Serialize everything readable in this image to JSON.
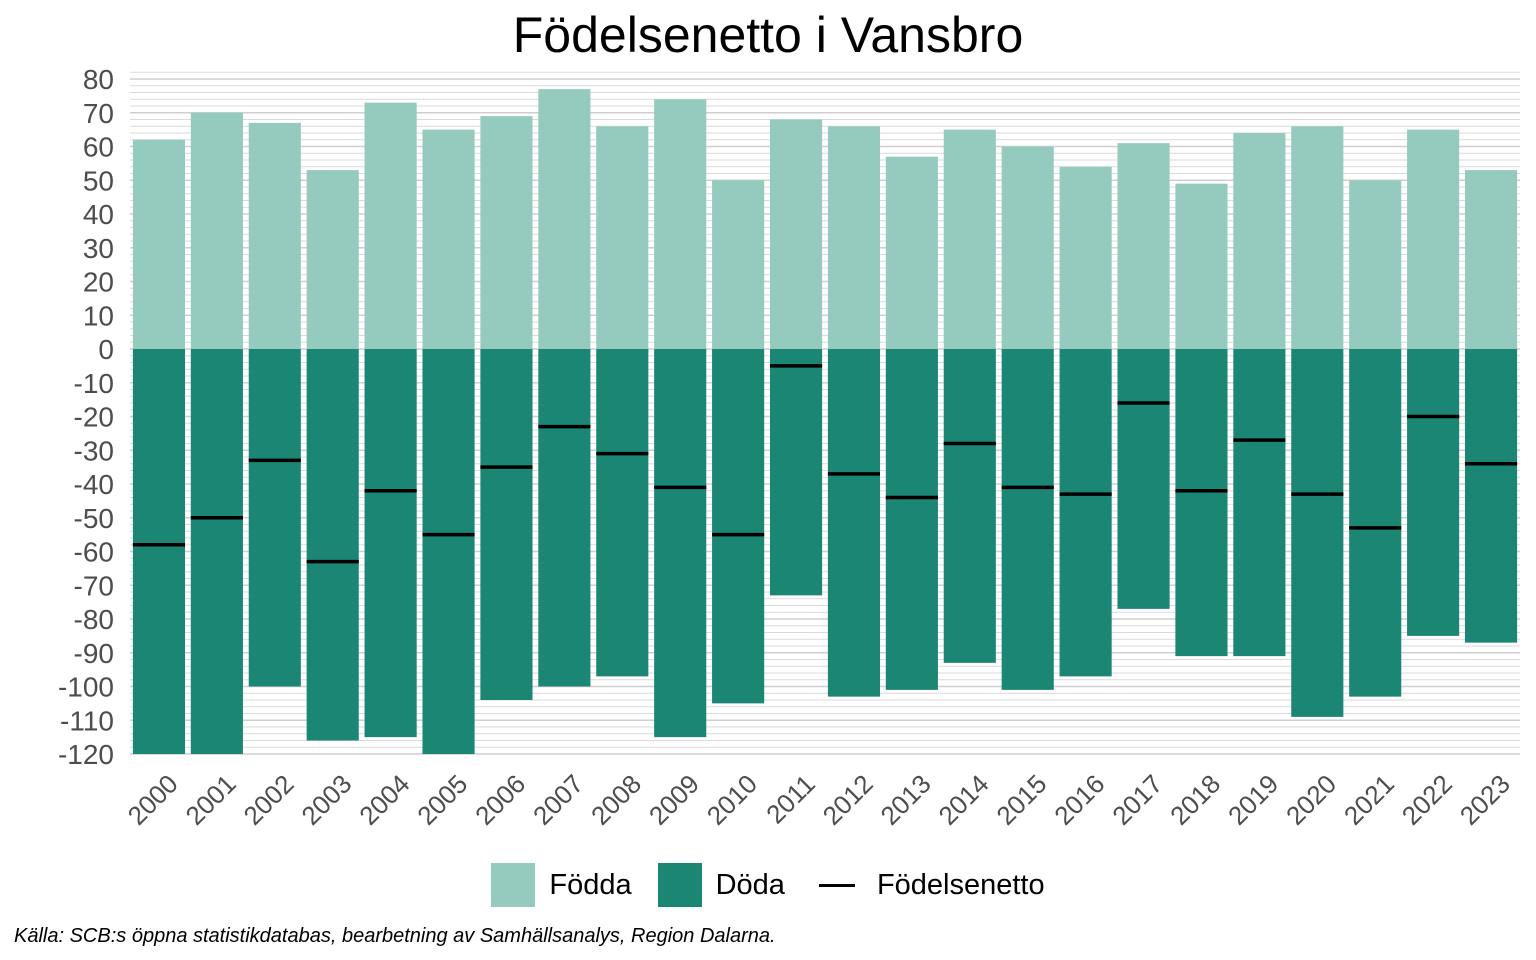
{
  "chart_data": {
    "type": "bar",
    "title": "Födelsenetto i Vansbro",
    "categories": [
      "2000",
      "2001",
      "2002",
      "2003",
      "2004",
      "2005",
      "2006",
      "2007",
      "2008",
      "2009",
      "2010",
      "2011",
      "2012",
      "2013",
      "2014",
      "2015",
      "2016",
      "2017",
      "2018",
      "2019",
      "2020",
      "2021",
      "2022",
      "2023"
    ],
    "series": [
      {
        "name": "Födda",
        "kind": "bar",
        "color": "#94cbbe",
        "values": [
          62,
          70,
          67,
          53,
          73,
          65,
          69,
          77,
          66,
          74,
          50,
          68,
          66,
          57,
          65,
          60,
          54,
          61,
          49,
          64,
          66,
          50,
          65,
          53
        ]
      },
      {
        "name": "Döda",
        "kind": "bar",
        "color": "#1a8673",
        "values": [
          -120,
          -120,
          -100,
          -116,
          -115,
          -120,
          -104,
          -100,
          -97,
          -115,
          -105,
          -73,
          -103,
          -101,
          -93,
          -101,
          -97,
          -77,
          -91,
          -91,
          -109,
          -103,
          -85,
          -87
        ]
      },
      {
        "name": "Födelsenetto",
        "kind": "line-mark",
        "color": "#000000",
        "values": [
          -58,
          -50,
          -33,
          -63,
          -42,
          -55,
          -35,
          -23,
          -31,
          -41,
          -55,
          -5,
          -37,
          -44,
          -28,
          -41,
          -43,
          -16,
          -42,
          -27,
          -43,
          -53,
          -20,
          -34
        ]
      }
    ],
    "yticks": [
      80,
      70,
      60,
      50,
      40,
      30,
      20,
      10,
      0,
      -10,
      -20,
      -30,
      -40,
      -50,
      -60,
      -70,
      -80,
      -90,
      -100,
      -110,
      -120
    ],
    "ylim": [
      -120,
      82
    ],
    "grid": true,
    "legend_position": "bottom",
    "xlabel": "",
    "ylabel": ""
  },
  "caption": "Källa: SCB:s öppna statistikdatabas, bearbetning av Samhällsanalys, Region Dalarna."
}
